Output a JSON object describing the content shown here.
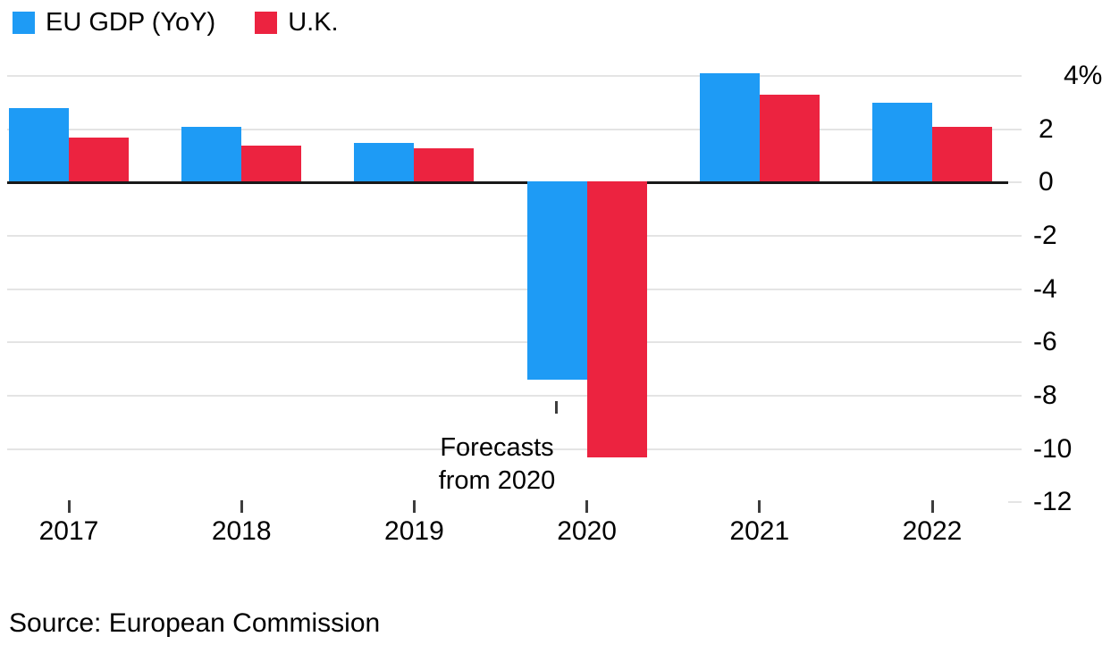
{
  "source": "Source: European Commission",
  "colors": {
    "eu_blue": "#1E9BF5",
    "uk_red": "#EC2340",
    "gridline": "#E4E4E4",
    "zero_axis": "#191919",
    "tick": "#3D3D3D",
    "text": "#000000",
    "background": "#FFFFFF"
  },
  "chart_data": {
    "type": "bar",
    "title": "",
    "categories": [
      "2017",
      "2018",
      "2019",
      "2020",
      "2021",
      "2022"
    ],
    "series": [
      {
        "name": "EU GDP (YoY)",
        "color": "#1E9BF5",
        "values": [
          2.8,
          2.1,
          1.5,
          -7.4,
          4.1,
          3.0
        ]
      },
      {
        "name": "U.K.",
        "color": "#EC2340",
        "values": [
          1.7,
          1.4,
          1.3,
          -10.3,
          3.3,
          2.1
        ]
      }
    ],
    "xlabel": "",
    "ylabel": "",
    "unit": "%",
    "ylim": [
      -12,
      4
    ],
    "y_ticks": [
      4,
      2,
      0,
      -2,
      -4,
      -6,
      -8,
      -10,
      -12
    ],
    "y_tick_labels": [
      "4%",
      "2",
      "0",
      "-2",
      "-4",
      "-6",
      "-8",
      "-10",
      "-12"
    ],
    "grid": "horizontal",
    "legend_position": "top-left",
    "y_axis_side": "right",
    "annotation": {
      "line1": "Forecasts",
      "line2": "from 2020",
      "target_category": "2020",
      "target_series": "EU GDP (YoY)"
    }
  }
}
